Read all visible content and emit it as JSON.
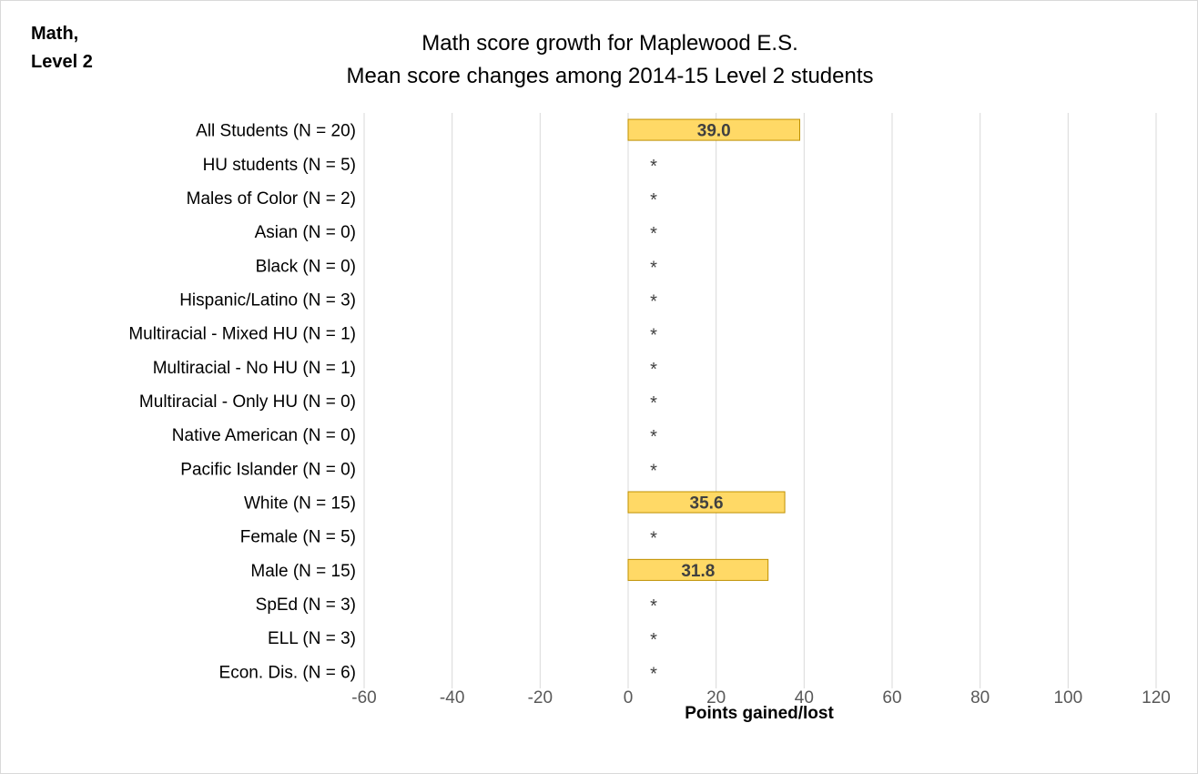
{
  "corner_label": [
    "Math,",
    "Level 2"
  ],
  "chart_data": {
    "type": "bar",
    "orientation": "horizontal",
    "title": "Math score growth for Maplewood E.S.",
    "subtitle": "Mean score changes among 2014-15 Level 2 students",
    "xlabel": "Points gained/lost",
    "xlim": [
      -60,
      120
    ],
    "xticks": [
      -60,
      -40,
      -20,
      0,
      20,
      40,
      60,
      80,
      100,
      120
    ],
    "grid": true,
    "bar_color": "#FFD966",
    "bar_edge_color": "#BF9000",
    "suppressed_marker": "*",
    "categories": [
      "All Students (N = 20)",
      "HU students (N = 5)",
      "Males of Color (N = 2)",
      "Asian (N = 0)",
      "Black (N = 0)",
      "Hispanic/Latino (N = 3)",
      "Multiracial - Mixed HU (N = 1)",
      "Multiracial - No HU (N = 1)",
      "Multiracial - Only HU (N = 0)",
      "Native American (N = 0)",
      "Pacific Islander (N = 0)",
      "White (N = 15)",
      "Female (N = 5)",
      "Male (N = 15)",
      "SpEd (N = 3)",
      "ELL (N = 3)",
      "Econ. Dis. (N = 6)"
    ],
    "values": [
      39.0,
      null,
      null,
      null,
      null,
      null,
      null,
      null,
      null,
      null,
      null,
      35.6,
      null,
      31.8,
      null,
      null,
      null
    ],
    "data_labels": [
      "39.0",
      "*",
      "*",
      "*",
      "*",
      "*",
      "*",
      "*",
      "*",
      "*",
      "*",
      "35.6",
      "*",
      "31.8",
      "*",
      "*",
      "*"
    ]
  }
}
